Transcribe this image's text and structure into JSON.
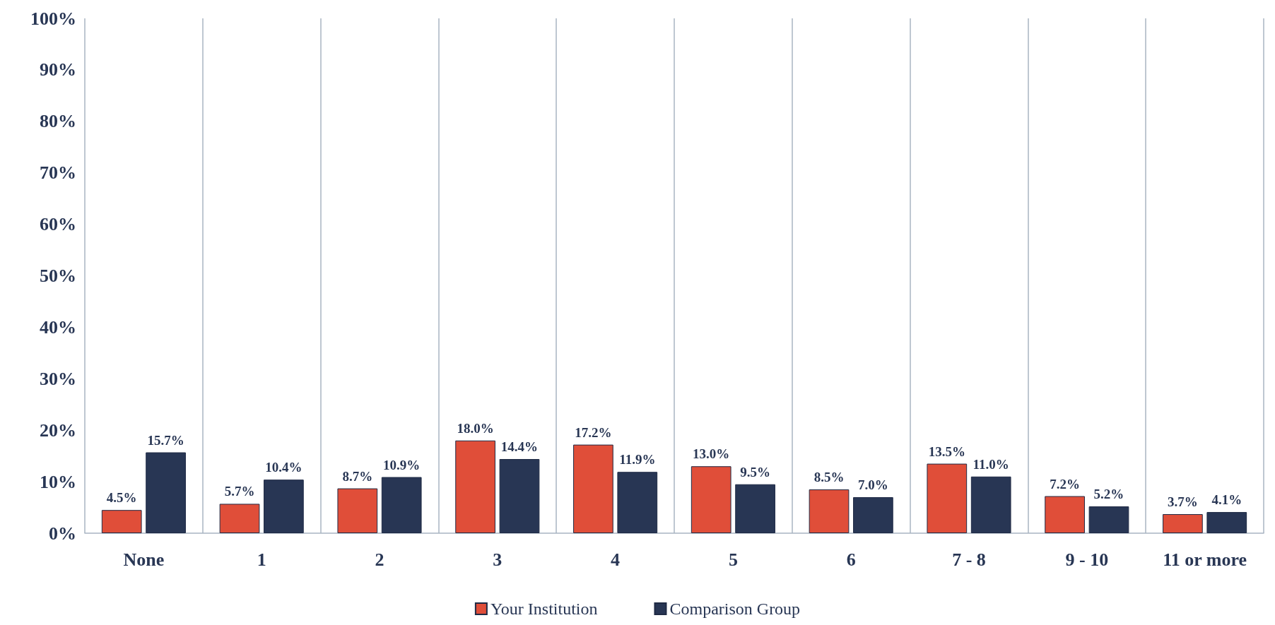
{
  "chart_data": {
    "type": "bar",
    "categories": [
      "None",
      "1",
      "2",
      "3",
      "4",
      "5",
      "6",
      "7 - 8",
      "9 - 10",
      "11 or more"
    ],
    "series": [
      {
        "name": "Your Institution",
        "color": "#e04e39",
        "values": [
          4.5,
          5.7,
          8.7,
          18.0,
          17.2,
          13.0,
          8.5,
          13.5,
          7.2,
          3.7
        ],
        "value_labels": [
          "4.5%",
          "5.7%",
          "8.7%",
          "18.0%",
          "17.2%",
          "13.0%",
          "8.5%",
          "13.5%",
          "7.2%",
          "3.7%"
        ]
      },
      {
        "name": "Comparison Group",
        "color": "#283654",
        "values": [
          15.7,
          10.4,
          10.9,
          14.4,
          11.9,
          9.5,
          7.0,
          11.0,
          5.2,
          4.1
        ],
        "value_labels": [
          "15.7%",
          "10.4%",
          "10.9%",
          "14.4%",
          "11.9%",
          "9.5%",
          "7.0%",
          "11.0%",
          "5.2%",
          "4.1%"
        ]
      }
    ],
    "ylim": [
      0,
      100
    ],
    "yticks": [
      {
        "value": 0,
        "label": "0%"
      },
      {
        "value": 10,
        "label": "10%"
      },
      {
        "value": 20,
        "label": "20%"
      },
      {
        "value": 30,
        "label": "30%"
      },
      {
        "value": 40,
        "label": "40%"
      },
      {
        "value": 50,
        "label": "50%"
      },
      {
        "value": 60,
        "label": "60%"
      },
      {
        "value": 70,
        "label": "70%"
      },
      {
        "value": 80,
        "label": "80%"
      },
      {
        "value": 90,
        "label": "90%"
      },
      {
        "value": 100,
        "label": "100%"
      }
    ],
    "grid": "x",
    "legend": "bottom"
  }
}
